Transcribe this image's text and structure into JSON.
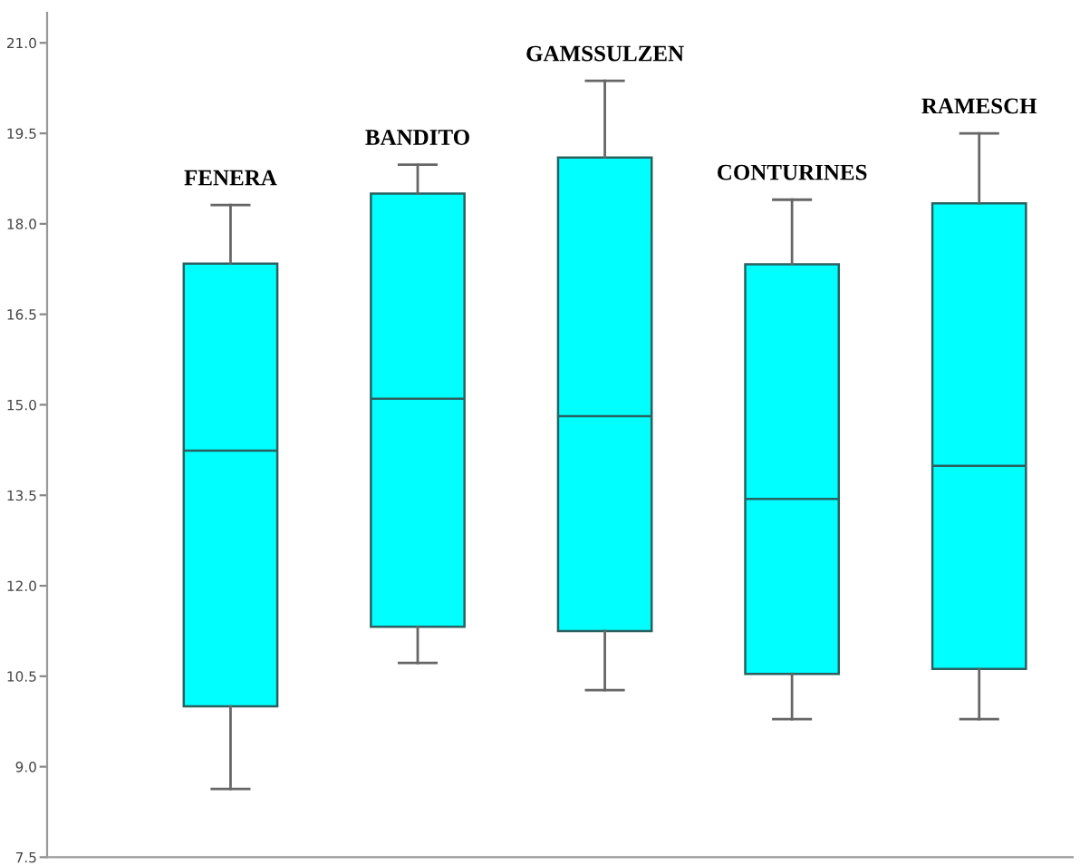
{
  "chart_data": {
    "type": "box",
    "categories": [
      "FENERA",
      "BANDITO",
      "GAMSSULZEN",
      "CONTURINES",
      "RAMESCH"
    ],
    "boxes": [
      {
        "low": 8.63,
        "q1": 10.0,
        "median": 14.24,
        "q3": 17.34,
        "high": 18.31
      },
      {
        "low": 10.72,
        "q1": 11.32,
        "median": 15.1,
        "q3": 18.5,
        "high": 18.98
      },
      {
        "low": 10.27,
        "q1": 11.25,
        "median": 14.81,
        "q3": 19.1,
        "high": 20.37
      },
      {
        "low": 9.79,
        "q1": 10.54,
        "median": 13.44,
        "q3": 17.33,
        "high": 18.4
      },
      {
        "low": 9.79,
        "q1": 10.62,
        "median": 13.99,
        "q3": 18.34,
        "high": 19.5
      }
    ],
    "color": "#00ffff",
    "ylim": [
      7.5,
      21.5
    ],
    "yticks": [
      {
        "value": 7.5,
        "label": "7.5"
      },
      {
        "value": 9.0,
        "label": "9.0"
      },
      {
        "value": 10.5,
        "label": "10.5"
      },
      {
        "value": 12.0,
        "label": "12.0"
      },
      {
        "value": 13.5,
        "label": "13.5"
      },
      {
        "value": 15.0,
        "label": "15.0"
      },
      {
        "value": 16.5,
        "label": "16.5"
      },
      {
        "value": 18.0,
        "label": "18.0"
      },
      {
        "value": 19.5,
        "label": "19.5"
      },
      {
        "value": 21.0,
        "label": "21.0"
      }
    ],
    "tick_labels": "y",
    "grid": false,
    "legend": false
  }
}
